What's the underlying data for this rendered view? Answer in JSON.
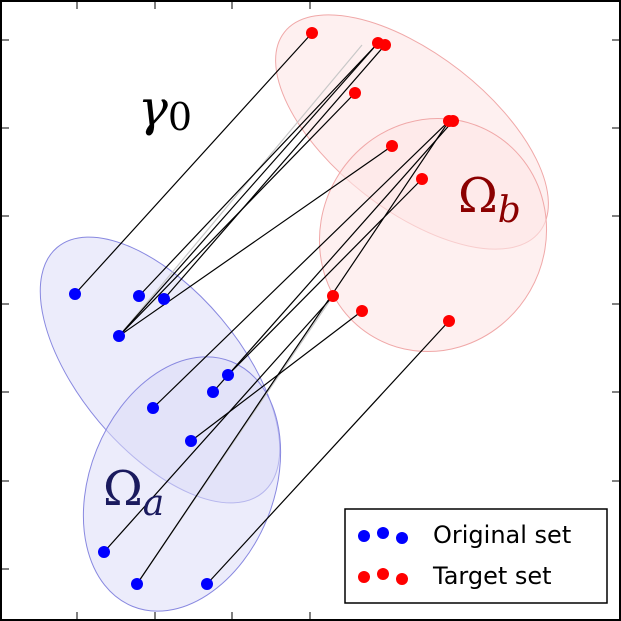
{
  "labels": {
    "gamma": "γ",
    "gamma_sub": "0",
    "omega_a": "Ω",
    "omega_a_sub": "a",
    "omega_b": "Ω",
    "omega_b_sub": "b"
  },
  "legend": {
    "original": "Original set",
    "target": "Target set"
  },
  "colors": {
    "original_point": "#0000ff",
    "target_point": "#ff0000",
    "link": "#000000",
    "faint_link": "#c8c8c8",
    "omega_a_fill": "#dcdcf8",
    "omega_a_stroke": "#8888e0",
    "omega_b_fill": "#fde6e6",
    "omega_b_stroke": "#f0a8a8",
    "omega_a_text": "#1a1a5e",
    "omega_b_text": "#8b0000"
  }
}
